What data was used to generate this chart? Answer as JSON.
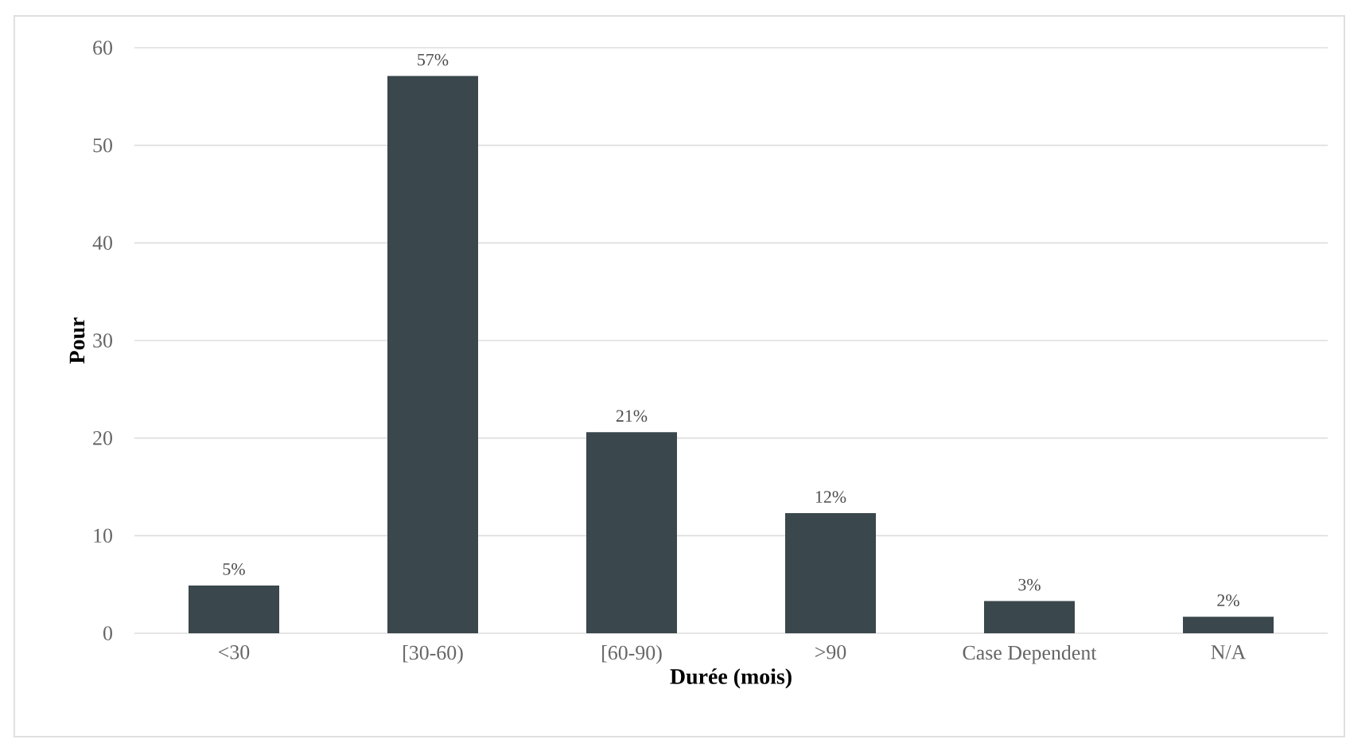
{
  "chart_data": {
    "type": "bar",
    "xlabel": "Durée (mois)",
    "ylabel": "Pour",
    "categories": [
      "<30",
      "[30-60)",
      "[60-90)",
      ">90",
      "Case Dependent",
      "N/A"
    ],
    "values": [
      4.9,
      57.1,
      20.6,
      12.3,
      3.3,
      1.7
    ],
    "value_labels": [
      "5%",
      "57%",
      "21%",
      "12%",
      "3%",
      "2%"
    ],
    "color": "#3a474c",
    "ylim": [
      0,
      60
    ],
    "yticks": [
      0,
      10,
      20,
      30,
      40,
      50,
      60
    ],
    "grid": "y"
  }
}
